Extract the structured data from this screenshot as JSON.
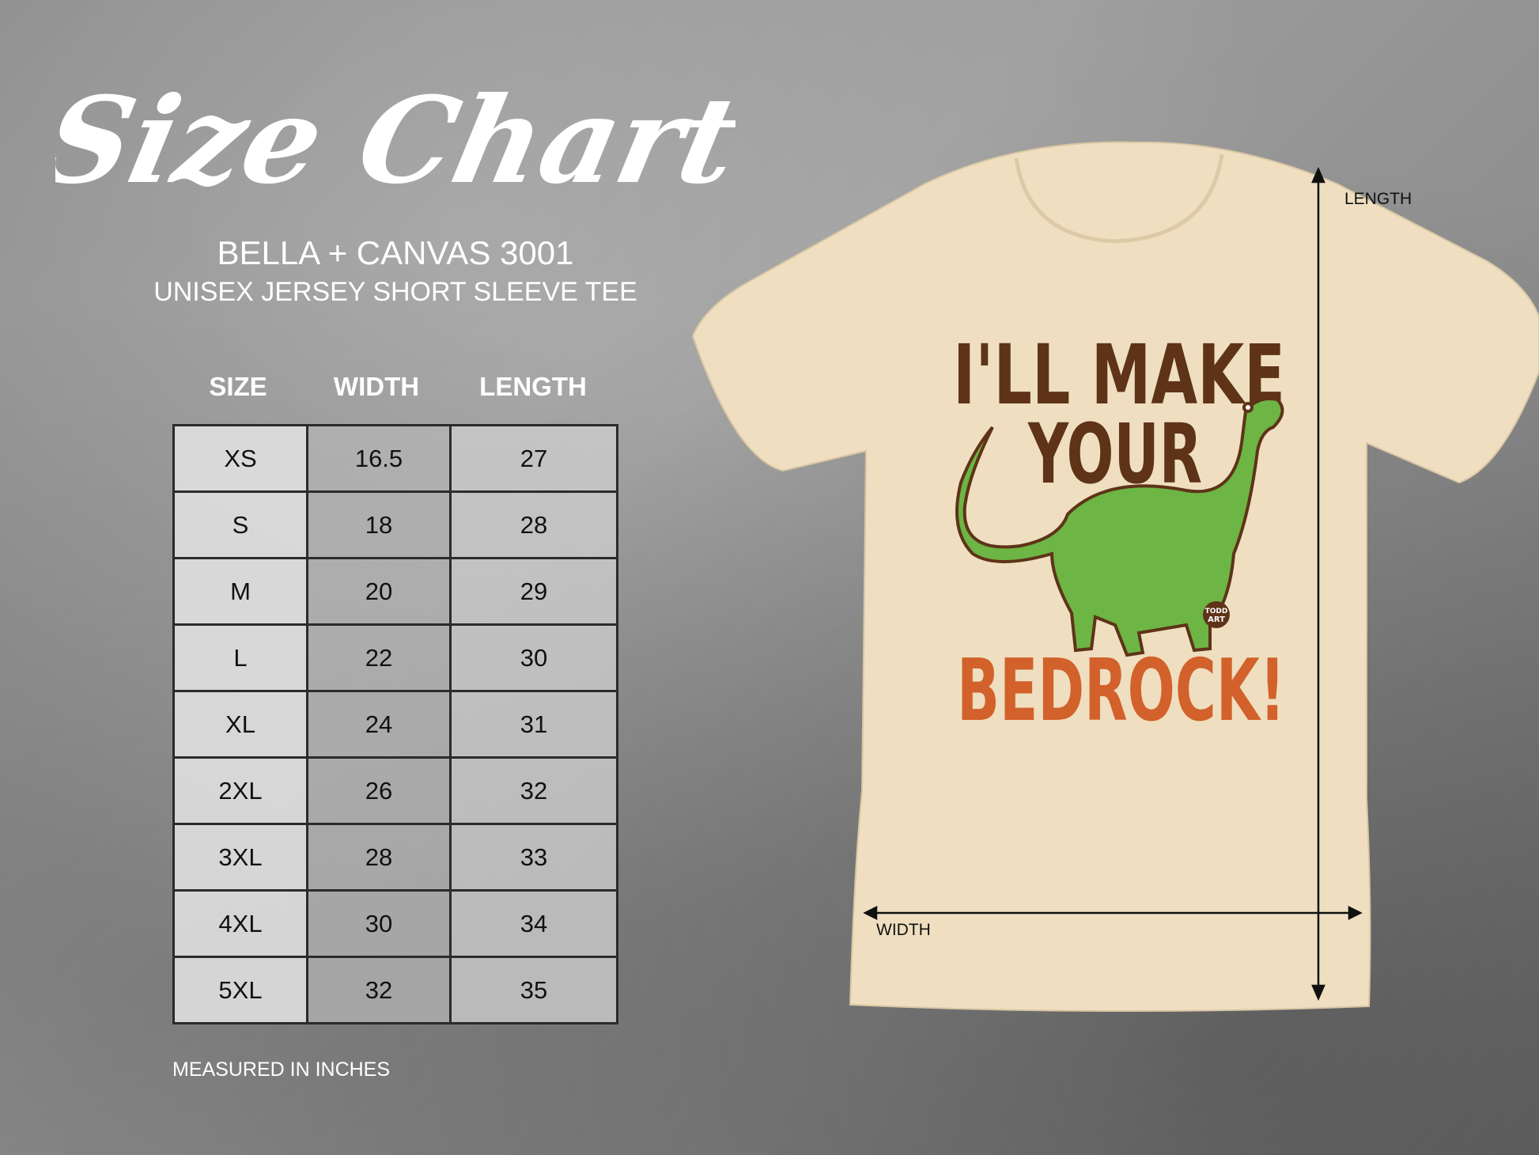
{
  "title": "Size Chart",
  "brand": "BELLA + CANVAS 3001",
  "subtitle": "UNISEX JERSEY SHORT SLEEVE TEE",
  "table": {
    "headers": [
      "SIZE",
      "WIDTH",
      "LENGTH"
    ],
    "rows": [
      [
        "XS",
        "16.5",
        "27"
      ],
      [
        "S",
        "18",
        "28"
      ],
      [
        "M",
        "20",
        "29"
      ],
      [
        "L",
        "22",
        "30"
      ],
      [
        "XL",
        "24",
        "31"
      ],
      [
        "2XL",
        "26",
        "32"
      ],
      [
        "3XL",
        "28",
        "33"
      ],
      [
        "4XL",
        "30",
        "34"
      ],
      [
        "5XL",
        "32",
        "35"
      ]
    ]
  },
  "note": "MEASURED IN INCHES",
  "shirt": {
    "color": "#efdfc0",
    "design_line1": "I'LL MAKE",
    "design_line2": "YOUR",
    "design_line3": "BEDROCK!",
    "logo_line1": "TODD",
    "logo_line2": "ART",
    "length_label": "LENGTH",
    "width_label": "WIDTH",
    "brown": "#5e3318",
    "orange": "#d2612b",
    "green": "#6db544"
  }
}
